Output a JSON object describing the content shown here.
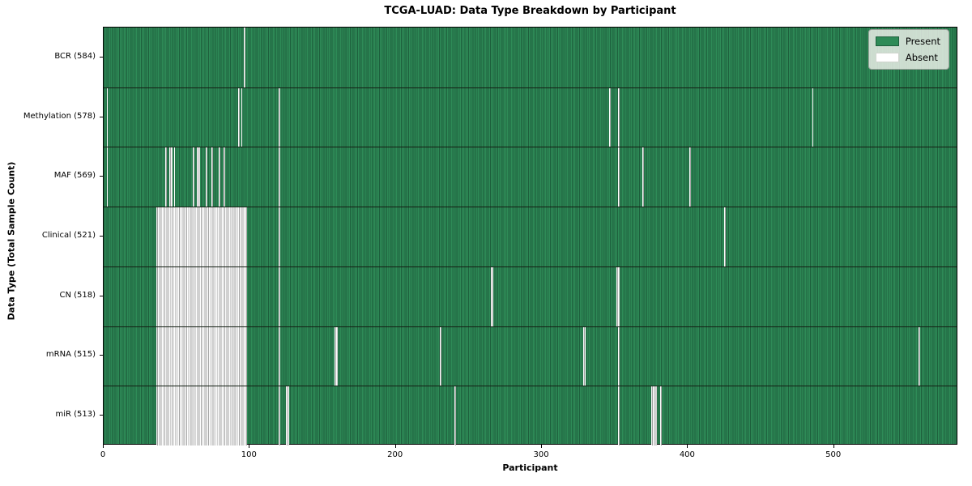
{
  "title": "TCGA-LUAD: Data Type Breakdown by Participant",
  "colors": {
    "present": "#2e8b57",
    "present_edge": "#1d5f3c",
    "absent": "#ffffff",
    "absent_edge": "#a3a3a3",
    "row_separator": "#141f14",
    "plot_border": "#000000",
    "legend_bg": "#e9ede6"
  },
  "chart_data": {
    "type": "heatmap",
    "title": "TCGA-LUAD: Data Type Breakdown by Participant",
    "xlabel": "Participant",
    "ylabel": "Data Type (Total Sample Count)",
    "x_range": [
      0,
      585
    ],
    "x_ticks": [
      0,
      100,
      200,
      300,
      400,
      500
    ],
    "grid": false,
    "legend_position": "upper right",
    "legend": [
      {
        "label": "Present",
        "color": "#2e8b57"
      },
      {
        "label": "Absent",
        "color": "#ffffff"
      }
    ],
    "value_encoding": "green cell = data present for participant, white cell = data absent",
    "rows": [
      {
        "label": "BCR (584)",
        "data_type": "BCR",
        "sample_count": 584,
        "absent_ranges": [
          [
            96,
            97
          ]
        ]
      },
      {
        "label": "Methylation (578)",
        "data_type": "Methylation",
        "sample_count": 578,
        "absent_ranges": [
          [
            2,
            3
          ],
          [
            92,
            93
          ],
          [
            94,
            95
          ],
          [
            120,
            121
          ],
          [
            346,
            347
          ],
          [
            352,
            353
          ],
          [
            485,
            486
          ]
        ]
      },
      {
        "label": "MAF (569)",
        "data_type": "MAF",
        "sample_count": 569,
        "absent_ranges": [
          [
            2,
            3
          ],
          [
            42,
            43
          ],
          [
            45,
            47
          ],
          [
            48,
            49
          ],
          [
            61,
            62
          ],
          [
            64,
            66
          ],
          [
            70,
            71
          ],
          [
            74,
            75
          ],
          [
            79,
            80
          ],
          [
            82,
            83
          ],
          [
            120,
            121
          ],
          [
            352,
            353
          ],
          [
            369,
            370
          ],
          [
            401,
            402
          ]
        ]
      },
      {
        "label": "Clinical (521)",
        "data_type": "Clinical",
        "sample_count": 521,
        "absent_ranges": [
          [
            36,
            98
          ],
          [
            120,
            121
          ],
          [
            425,
            426
          ]
        ]
      },
      {
        "label": "CN (518)",
        "data_type": "CN",
        "sample_count": 518,
        "absent_ranges": [
          [
            36,
            98
          ],
          [
            120,
            121
          ],
          [
            265,
            267
          ],
          [
            351,
            353
          ]
        ]
      },
      {
        "label": "mRNA (515)",
        "data_type": "mRNA",
        "sample_count": 515,
        "absent_ranges": [
          [
            36,
            98
          ],
          [
            120,
            121
          ],
          [
            158,
            160
          ],
          [
            230,
            231
          ],
          [
            328,
            330
          ],
          [
            352,
            353
          ],
          [
            558,
            559
          ]
        ]
      },
      {
        "label": "miR (513)",
        "data_type": "miR",
        "sample_count": 513,
        "absent_ranges": [
          [
            36,
            98
          ],
          [
            120,
            121
          ],
          [
            125,
            127
          ],
          [
            240,
            241
          ],
          [
            352,
            353
          ],
          [
            375,
            379
          ],
          [
            381,
            382
          ]
        ]
      }
    ]
  }
}
